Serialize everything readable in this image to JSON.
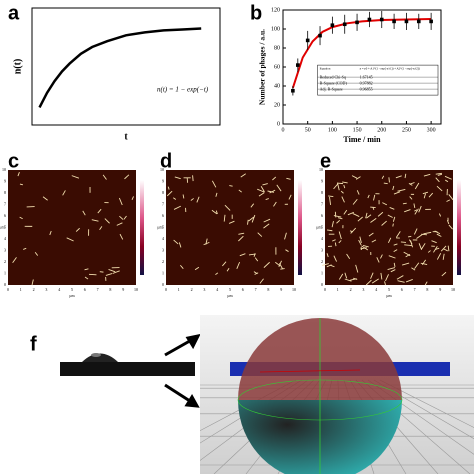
{
  "panel_labels": [
    "a",
    "b",
    "c",
    "d",
    "e",
    "f"
  ],
  "chart_data": [
    {
      "type": "line",
      "xlabel": "t",
      "ylabel": "n(t)",
      "annotation": "n(t) = 1 − exp(−t)",
      "x": [
        0.2,
        0.4,
        0.6,
        0.8,
        1,
        1.3,
        1.6,
        2,
        2.5,
        3,
        3.5,
        4,
        4.5
      ],
      "values": [
        0.18,
        0.33,
        0.45,
        0.55,
        0.63,
        0.73,
        0.8,
        0.86,
        0.92,
        0.95,
        0.97,
        0.98,
        0.99
      ],
      "color": "#000000",
      "xlim": [
        0,
        5
      ],
      "ylim": [
        0,
        1.2
      ]
    },
    {
      "type": "scatter",
      "xlabel": "Time / min",
      "ylabel": "Number of phages / a.u.",
      "x": [
        20,
        30,
        50,
        75,
        100,
        125,
        150,
        175,
        200,
        225,
        250,
        275,
        300
      ],
      "series": [
        {
          "color": "#000000",
          "values": [
            35,
            62,
            88,
            93,
            104,
            105,
            107,
            110,
            110,
            108,
            108,
            108,
            108
          ],
          "errors": [
            5,
            7,
            10,
            10,
            9,
            10,
            9,
            8,
            9,
            8,
            9,
            8,
            9
          ]
        },
        {
          "color": "#e00000",
          "x": [
            20,
            40,
            60,
            80,
            100,
            130,
            160,
            200,
            250,
            300
          ],
          "values": [
            38,
            70,
            87,
            97,
            102,
            106,
            108,
            109.5,
            110,
            110.5
          ]
        }
      ],
      "xlim": [
        0,
        320
      ],
      "ylim": [
        0,
        120
      ],
      "xticks": [
        0,
        50,
        100,
        150,
        200,
        250,
        300
      ],
      "yticks": [
        0,
        20,
        40,
        60,
        80,
        100,
        120
      ],
      "table": [
        [
          "Equation",
          "y = y0 + A1*(1 - exp(-x/t1)) + A2*(1 - exp(-x/t2))"
        ],
        [
          "Reduced Chi-Sq",
          "1.67145"
        ],
        [
          "R-Square (COD)",
          "0.97882"
        ],
        [
          "Adj. R-Square",
          "0.96855"
        ]
      ]
    }
  ],
  "afm_unit": "μm",
  "afm_ticks": [
    0,
    1,
    2,
    3,
    4,
    5,
    6,
    7,
    8,
    9,
    10
  ]
}
